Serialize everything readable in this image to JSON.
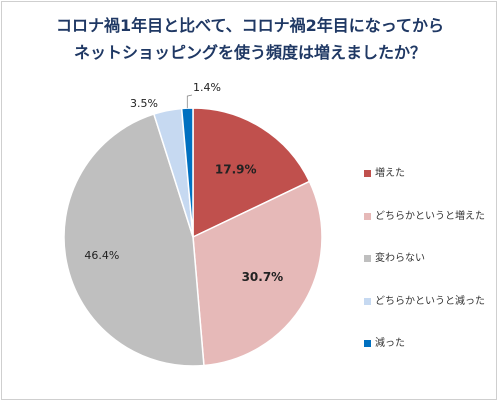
{
  "chart_data": {
    "type": "pie",
    "title": [
      "コロナ禍1年目と比べて、コロナ禍2年目になってから",
      "ネットショッピングを使う頻度は増えましたか？"
    ],
    "slices": [
      {
        "label": "増えた",
        "value": 17.9,
        "value_label": "17.9%",
        "color": "#c0504d"
      },
      {
        "label": "どちらかというと増えた",
        "value": 30.7,
        "value_label": "30.7%",
        "color": "#e6b9b8"
      },
      {
        "label": "変わらない",
        "value": 46.4,
        "value_label": "46.4%",
        "color": "#bfbfbf"
      },
      {
        "label": "どちらかというと減った",
        "value": 3.5,
        "value_label": "3.5%",
        "color": "#c6d9f1"
      },
      {
        "label": "減った",
        "value": 1.4,
        "value_label": "1.4%",
        "color": "#0070c0"
      }
    ],
    "legend_position": "right"
  }
}
